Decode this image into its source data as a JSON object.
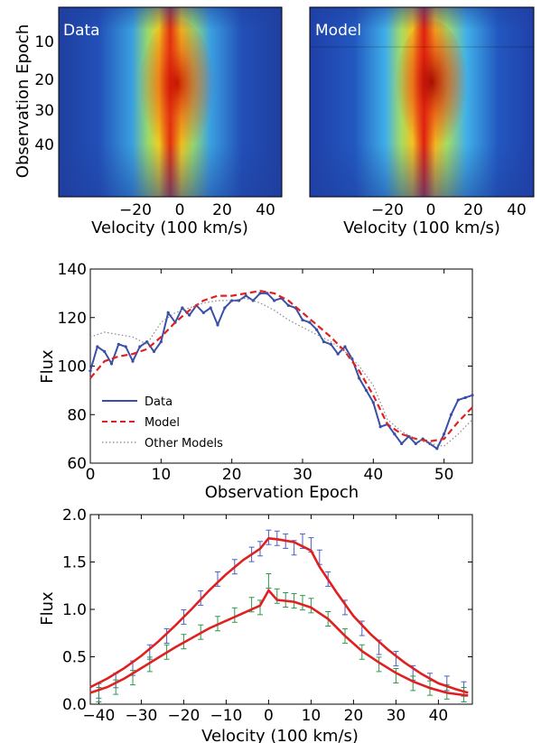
{
  "chart_data": [
    {
      "type": "heatmap",
      "panel_label": "Data",
      "xlabel": "Velocity (100 km/s)",
      "ylabel": "Observation Epoch",
      "xticks": [
        "−20",
        "0",
        "20",
        "40"
      ],
      "yticks": [
        "10",
        "20",
        "30",
        "40"
      ],
      "xlim": [
        -45,
        48
      ],
      "ylim": [
        54,
        0
      ],
      "colormap": "jet",
      "notes_peak": "emission centered near 0 velocity, strongest around epochs 15-35",
      "bg_color": "#1f3f9f"
    },
    {
      "type": "heatmap",
      "panel_label": "Model",
      "xlabel": "Velocity (100 km/s)",
      "xticks": [
        "−20",
        "0",
        "20",
        "40"
      ],
      "xlim": [
        -45,
        48
      ],
      "ylim": [
        54,
        0
      ],
      "colormap": "jet"
    },
    {
      "type": "line",
      "xlabel": "Observation Epoch",
      "ylabel": "Flux",
      "xlim": [
        0,
        54
      ],
      "ylim": [
        60,
        140
      ],
      "xticks": [
        "0",
        "10",
        "20",
        "30",
        "40",
        "50"
      ],
      "yticks": [
        "60",
        "80",
        "100",
        "120",
        "140"
      ],
      "legend": [
        "Data",
        "Model",
        "Other Models"
      ],
      "legend_position": "lower-left",
      "series": [
        {
          "name": "Data",
          "color": "#3a4fa8",
          "style": "solid-markers",
          "x": [
            0,
            1,
            2,
            3,
            4,
            5,
            6,
            7,
            8,
            9,
            10,
            11,
            12,
            13,
            14,
            15,
            16,
            17,
            18,
            19,
            20,
            21,
            22,
            23,
            24,
            25,
            26,
            27,
            28,
            29,
            30,
            31,
            32,
            33,
            34,
            35,
            36,
            37,
            38,
            39,
            40,
            41,
            42,
            43,
            44,
            45,
            46,
            47,
            48,
            49,
            50,
            51,
            52,
            53,
            54
          ],
          "y": [
            98,
            108,
            106,
            101,
            109,
            108,
            102,
            108,
            110,
            106,
            110,
            122,
            118,
            124,
            121,
            125,
            122,
            124,
            117,
            124,
            127,
            127,
            129,
            127,
            130,
            130,
            127,
            128,
            125,
            124,
            119,
            118,
            115,
            110,
            109,
            105,
            108,
            103,
            95,
            90,
            85,
            75,
            76,
            72,
            68,
            71,
            68,
            70,
            68,
            66,
            72,
            80,
            86,
            87,
            88
          ]
        },
        {
          "name": "Model",
          "color": "#e02020",
          "style": "dashed",
          "x": [
            0,
            2,
            4,
            6,
            8,
            10,
            12,
            14,
            16,
            18,
            20,
            22,
            24,
            26,
            28,
            30,
            32,
            34,
            36,
            38,
            40,
            42,
            44,
            46,
            48,
            50,
            52,
            54
          ],
          "y": [
            95,
            102,
            104,
            105,
            107,
            112,
            118,
            123,
            127,
            129,
            129,
            130,
            131,
            130,
            127,
            122,
            117,
            112,
            106,
            98,
            88,
            76,
            72,
            70,
            69,
            70,
            77,
            83
          ]
        },
        {
          "name": "Other Models",
          "color": "#888888",
          "style": "dotted",
          "x": [
            0,
            2,
            4,
            6,
            8,
            10,
            12,
            14,
            16,
            18,
            20,
            22,
            24,
            26,
            28,
            30,
            32,
            34,
            36,
            38,
            40,
            42,
            44,
            46,
            48,
            50,
            52,
            54
          ],
          "y": [
            112,
            114,
            113,
            112,
            109,
            118,
            122,
            124,
            126,
            127,
            127,
            128,
            126,
            123,
            119,
            116,
            113,
            110,
            106,
            100,
            92,
            78,
            73,
            70,
            68,
            67,
            72,
            78
          ]
        }
      ]
    },
    {
      "type": "line",
      "xlabel": "Velocity (100 km/s)",
      "ylabel": "Flux",
      "xlim": [
        -42,
        48
      ],
      "ylim": [
        0.0,
        2.0
      ],
      "xticks": [
        "−40",
        "−30",
        "−20",
        "−10",
        "0",
        "10",
        "20",
        "30",
        "40"
      ],
      "yticks": [
        "0.0",
        "0.5",
        "1.0",
        "1.5",
        "2.0"
      ],
      "series": [
        {
          "name": "upper data",
          "color": "#4a5fc0",
          "style": "errorbar",
          "x": [
            -40,
            -36,
            -32,
            -28,
            -24,
            -20,
            -16,
            -12,
            -8,
            -4,
            -2,
            0,
            2,
            4,
            6,
            8,
            10,
            12,
            14,
            18,
            22,
            26,
            30,
            34,
            38,
            42,
            46
          ],
          "y": [
            0.14,
            0.25,
            0.38,
            0.55,
            0.72,
            0.92,
            1.12,
            1.32,
            1.45,
            1.58,
            1.64,
            1.76,
            1.75,
            1.72,
            1.65,
            1.72,
            1.68,
            1.55,
            1.32,
            1.02,
            0.8,
            0.6,
            0.48,
            0.33,
            0.25,
            0.22,
            0.16
          ]
        },
        {
          "name": "lower data",
          "color": "#2a9a4a",
          "style": "errorbar",
          "x": [
            -40,
            -36,
            -32,
            -28,
            -24,
            -20,
            -16,
            -12,
            -8,
            -4,
            -2,
            0,
            2,
            4,
            6,
            8,
            10,
            14,
            18,
            22,
            26,
            30,
            34,
            38,
            42,
            46
          ],
          "y": [
            0.1,
            0.18,
            0.28,
            0.42,
            0.55,
            0.66,
            0.76,
            0.85,
            0.94,
            1.05,
            1.02,
            1.3,
            1.14,
            1.1,
            1.09,
            1.07,
            1.04,
            0.9,
            0.72,
            0.55,
            0.42,
            0.3,
            0.22,
            0.17,
            0.13,
            0.1
          ]
        },
        {
          "name": "upper model",
          "color": "#e02020",
          "style": "solid",
          "x": [
            -42,
            -38,
            -34,
            -30,
            -26,
            -22,
            -18,
            -14,
            -10,
            -6,
            -2,
            0,
            2,
            6,
            10,
            12,
            16,
            20,
            24,
            28,
            32,
            36,
            40,
            44,
            47
          ],
          "y": [
            0.18,
            0.27,
            0.38,
            0.51,
            0.66,
            0.83,
            1.01,
            1.2,
            1.37,
            1.52,
            1.64,
            1.75,
            1.74,
            1.71,
            1.62,
            1.45,
            1.18,
            0.93,
            0.74,
            0.58,
            0.44,
            0.32,
            0.22,
            0.16,
            0.12
          ]
        },
        {
          "name": "lower model",
          "color": "#e02020",
          "style": "solid",
          "x": [
            -42,
            -38,
            -34,
            -30,
            -26,
            -22,
            -18,
            -14,
            -10,
            -6,
            -2,
            0,
            2,
            6,
            10,
            14,
            18,
            22,
            26,
            30,
            34,
            38,
            42,
            47
          ],
          "y": [
            0.12,
            0.18,
            0.27,
            0.38,
            0.49,
            0.6,
            0.7,
            0.8,
            0.88,
            0.96,
            1.04,
            1.2,
            1.1,
            1.08,
            1.02,
            0.9,
            0.72,
            0.56,
            0.44,
            0.33,
            0.24,
            0.17,
            0.12,
            0.09
          ]
        }
      ]
    }
  ]
}
